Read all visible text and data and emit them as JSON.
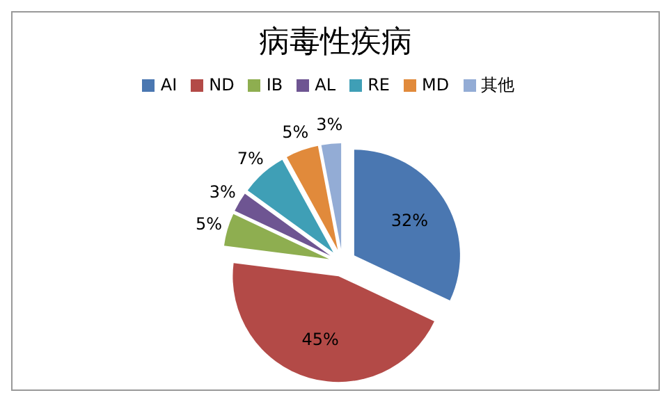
{
  "chart_data": {
    "type": "pie",
    "title": "病毒性疾病",
    "categories": [
      "AI",
      "ND",
      "IB",
      "AL",
      "RE",
      "MD",
      "其他"
    ],
    "values": [
      32,
      45,
      5,
      3,
      7,
      5,
      3
    ],
    "value_labels": [
      "32%",
      "45%",
      "5%",
      "3%",
      "7%",
      "5%",
      "3%"
    ],
    "colors": [
      "#4a77b1",
      "#b34a47",
      "#8eae50",
      "#6e5592",
      "#3f9fb6",
      "#e18a3b",
      "#93acd5"
    ],
    "legend": "top"
  }
}
